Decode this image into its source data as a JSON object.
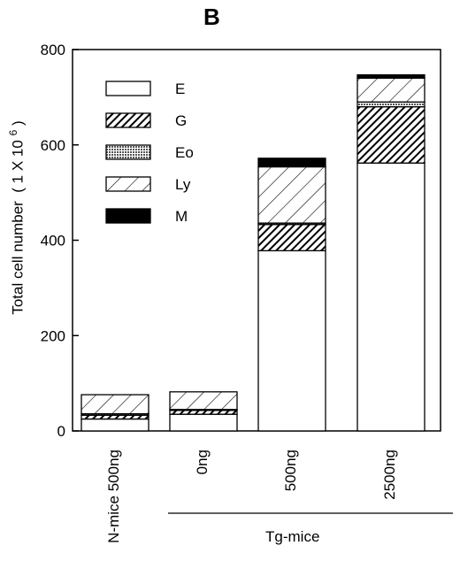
{
  "panel_label": "B",
  "colors": {
    "E": "#ffffff",
    "G": "#222222",
    "Eo": "#8a8a8a",
    "Ly": "#ffffff",
    "M": "#000000",
    "axis": "#000000"
  },
  "chart_data": {
    "type": "bar",
    "stacked": true,
    "title": "",
    "ylabel_main": "Total cell number",
    "ylabel_unit_prefix": "( 1 X 10",
    "ylabel_unit_exp": "6",
    "ylabel_unit_suffix": ")",
    "ylim": [
      0,
      800
    ],
    "yticks": [
      0,
      200,
      400,
      600,
      800
    ],
    "categories": [
      "N-mice 500ng",
      "0ng",
      "500ng",
      "2500ng"
    ],
    "group_label": "Tg-mice",
    "group_categories": [
      "0ng",
      "500ng",
      "2500ng"
    ],
    "legend_position": "top-left",
    "series": [
      {
        "name": "E",
        "fill": "plain",
        "values": [
          25,
          35,
          378,
          562
        ]
      },
      {
        "name": "G",
        "fill": "dense-hatch",
        "values": [
          8,
          8,
          55,
          118
        ]
      },
      {
        "name": "Eo",
        "fill": "stipple",
        "values": [
          3,
          2,
          3,
          10
        ]
      },
      {
        "name": "Ly",
        "fill": "hatch",
        "values": [
          40,
          37,
          118,
          50
        ]
      },
      {
        "name": "M",
        "fill": "solid",
        "values": [
          0,
          0,
          18,
          7
        ]
      }
    ]
  }
}
